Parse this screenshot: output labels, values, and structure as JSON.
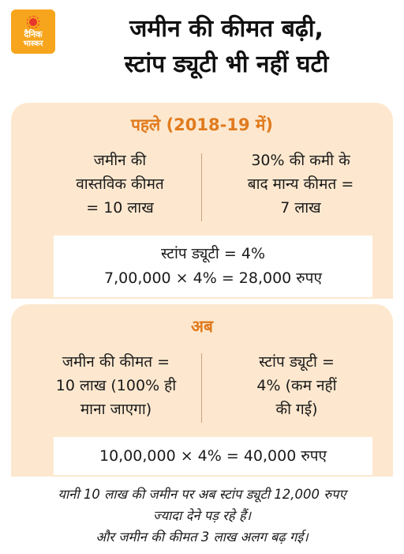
{
  "logo": {
    "line1": "दैनिक",
    "line2": "भास्कर"
  },
  "headline": {
    "line1": "जमीन की कीमत बढ़ी,",
    "line2": "स्टांप ड्यूटी भी नहीं घटी"
  },
  "before": {
    "title": "पहले (2018-19 में)",
    "left": [
      "जमीन की",
      "वास्तविक कीमत",
      "= 10 लाख"
    ],
    "right": [
      "30% की कमी के",
      "बाद मान्य कीमत =",
      "7 लाख"
    ],
    "box": [
      "स्टांप ड्यूटी = 4%",
      "7,00,000 × 4% = 28,000 रुपए"
    ]
  },
  "now": {
    "title": "अब",
    "left": [
      "जमीन की कीमत =",
      "10 लाख (100% ही",
      "माना जाएगा)"
    ],
    "right": [
      "स्टांप ड्यूटी =",
      "4% (कम नहीं",
      "की गई)"
    ],
    "box": [
      "10,00,000 × 4% = 40,000 रुपए"
    ]
  },
  "footnote": [
    "यानी 10 लाख की जमीन पर अब स्टांप ड्यूटी 12,000 रुपए",
    "ज्यादा देने पड़ रहे हैं।",
    "और जमीन की कीमत 3 लाख अलग बढ़ गई।"
  ],
  "colors": {
    "panel": "#fde8cf",
    "accent": "#e07b1f",
    "logo": "#f7a51c"
  }
}
